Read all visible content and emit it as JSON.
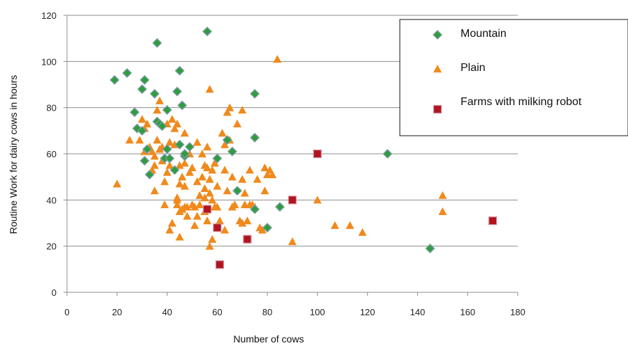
{
  "chart_data": {
    "type": "scatter",
    "xlabel": "Number of cows",
    "ylabel": "Routine Work for dairy cows in hours",
    "xlim": [
      0,
      180
    ],
    "ylim": [
      0,
      120
    ],
    "xticks": [
      0,
      20,
      40,
      60,
      80,
      100,
      120,
      140,
      160,
      180
    ],
    "yticks": [
      0,
      20,
      40,
      60,
      80,
      100,
      120
    ],
    "grid": "horizontal",
    "legend_position": "top-right",
    "series": [
      {
        "name": "Mountain",
        "marker": "diamond",
        "color": "#2e9e3a",
        "edge_color": "#7a9aa6",
        "points": [
          [
            19,
            92
          ],
          [
            24,
            95
          ],
          [
            27,
            78
          ],
          [
            28,
            71
          ],
          [
            30,
            88
          ],
          [
            30,
            70
          ],
          [
            31,
            92
          ],
          [
            31,
            57
          ],
          [
            32,
            62
          ],
          [
            33,
            51
          ],
          [
            35,
            86
          ],
          [
            36,
            108
          ],
          [
            36,
            74
          ],
          [
            37,
            73
          ],
          [
            38,
            72
          ],
          [
            39,
            58
          ],
          [
            40,
            79
          ],
          [
            40,
            62
          ],
          [
            41,
            58
          ],
          [
            43,
            53
          ],
          [
            44,
            87
          ],
          [
            45,
            96
          ],
          [
            45,
            64
          ],
          [
            46,
            81
          ],
          [
            47,
            59
          ],
          [
            47,
            60
          ],
          [
            49,
            63
          ],
          [
            56,
            113
          ],
          [
            60,
            58
          ],
          [
            64,
            66
          ],
          [
            66,
            61
          ],
          [
            68,
            44
          ],
          [
            75,
            86
          ],
          [
            75,
            67
          ],
          [
            75,
            36
          ],
          [
            80,
            28
          ],
          [
            85,
            37
          ],
          [
            128,
            60
          ],
          [
            145,
            19
          ]
        ]
      },
      {
        "name": "Plain",
        "marker": "triangle",
        "color": "#f08a1c",
        "points": [
          [
            20,
            47
          ],
          [
            25,
            66
          ],
          [
            29,
            66
          ],
          [
            30,
            75
          ],
          [
            31,
            71
          ],
          [
            31,
            61
          ],
          [
            32,
            73
          ],
          [
            33,
            63
          ],
          [
            34,
            61
          ],
          [
            34,
            53
          ],
          [
            35,
            59
          ],
          [
            35,
            44
          ],
          [
            35,
            55
          ],
          [
            36,
            66
          ],
          [
            36,
            79
          ],
          [
            37,
            83
          ],
          [
            37,
            62
          ],
          [
            38,
            57
          ],
          [
            38,
            63
          ],
          [
            39,
            48
          ],
          [
            39,
            38
          ],
          [
            40,
            73
          ],
          [
            40,
            52
          ],
          [
            41,
            65
          ],
          [
            41,
            55
          ],
          [
            41,
            27
          ],
          [
            42,
            30
          ],
          [
            42,
            75
          ],
          [
            43,
            71
          ],
          [
            43,
            64
          ],
          [
            44,
            40
          ],
          [
            44,
            38
          ],
          [
            44,
            41
          ],
          [
            44,
            73
          ],
          [
            45,
            24
          ],
          [
            45,
            35
          ],
          [
            45,
            55
          ],
          [
            45,
            47
          ],
          [
            46,
            36
          ],
          [
            46,
            50
          ],
          [
            47,
            69
          ],
          [
            47,
            46
          ],
          [
            47,
            56
          ],
          [
            47,
            37
          ],
          [
            48,
            37
          ],
          [
            48,
            33
          ],
          [
            49,
            60
          ],
          [
            49,
            52
          ],
          [
            50,
            38
          ],
          [
            50,
            54
          ],
          [
            51,
            37
          ],
          [
            51,
            29
          ],
          [
            52,
            65
          ],
          [
            52,
            48
          ],
          [
            52,
            33
          ],
          [
            53,
            42
          ],
          [
            53,
            38
          ],
          [
            54,
            60
          ],
          [
            54,
            50
          ],
          [
            55,
            55
          ],
          [
            55,
            45
          ],
          [
            55,
            41
          ],
          [
            55,
            35
          ],
          [
            56,
            63
          ],
          [
            56,
            54
          ],
          [
            56,
            31
          ],
          [
            57,
            88
          ],
          [
            57,
            49
          ],
          [
            57,
            43
          ],
          [
            57,
            20
          ],
          [
            58,
            23
          ],
          [
            58,
            53
          ],
          [
            58,
            40
          ],
          [
            59,
            56
          ],
          [
            59,
            37
          ],
          [
            60,
            37
          ],
          [
            60,
            28
          ],
          [
            60,
            46
          ],
          [
            61,
            31
          ],
          [
            62,
            69
          ],
          [
            63,
            53
          ],
          [
            63,
            64
          ],
          [
            63,
            27
          ],
          [
            64,
            78
          ],
          [
            64,
            44
          ],
          [
            65,
            80
          ],
          [
            65,
            66
          ],
          [
            66,
            50
          ],
          [
            66,
            37
          ],
          [
            67,
            38
          ],
          [
            68,
            73
          ],
          [
            69,
            31
          ],
          [
            70,
            30
          ],
          [
            70,
            79
          ],
          [
            70,
            49
          ],
          [
            71,
            38
          ],
          [
            71,
            43
          ],
          [
            72,
            31
          ],
          [
            73,
            53
          ],
          [
            73,
            38
          ],
          [
            74,
            38
          ],
          [
            75,
            37
          ],
          [
            76,
            49
          ],
          [
            77,
            28
          ],
          [
            78,
            27
          ],
          [
            79,
            44
          ],
          [
            79,
            54
          ],
          [
            80,
            51
          ],
          [
            81,
            53
          ],
          [
            82,
            51
          ],
          [
            84,
            101
          ],
          [
            90,
            22
          ],
          [
            100,
            40
          ],
          [
            107,
            29
          ],
          [
            113,
            29
          ],
          [
            118,
            26
          ],
          [
            150,
            42
          ],
          [
            150,
            35
          ]
        ]
      },
      {
        "name": "Farms with milking robot",
        "marker": "square",
        "color": "#b0151f",
        "edge_color": "#d4889a",
        "points": [
          [
            56,
            36
          ],
          [
            60,
            28
          ],
          [
            61,
            12
          ],
          [
            72,
            23
          ],
          [
            90,
            40
          ],
          [
            100,
            60
          ],
          [
            170,
            31
          ]
        ]
      }
    ]
  }
}
